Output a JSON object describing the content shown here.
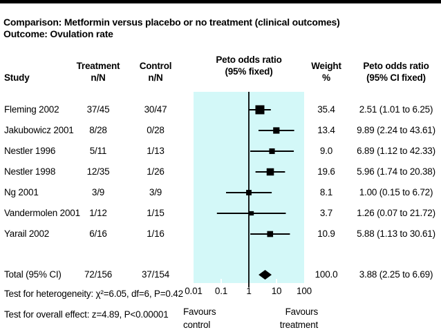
{
  "page": {
    "title_line1": "Comparison: Metformin versus placebo or no treatment (clinical outcomes)",
    "title_line2": "Outcome: Ovulation rate"
  },
  "table": {
    "headers": {
      "study": "Study",
      "treatment": "Treatment",
      "treatment_sub": "n/N",
      "control": "Control",
      "control_sub": "n/N",
      "plot": "Peto odds ratio",
      "plot_sub": "(95% fixed)",
      "weight": "Weight",
      "weight_sub": "%",
      "or_col": "Peto odds ratio",
      "or_col_sub": "(95% CI fixed)"
    }
  },
  "chart_data": {
    "type": "forest",
    "title": "Metformin versus placebo or no treatment (clinical outcomes) — Ovulation rate",
    "effect_measure": "Peto odds ratio (95% CI fixed)",
    "colors": {
      "plot_bg": "#d3f8f8",
      "marker": "#000000"
    },
    "x_axis": {
      "scale": "log",
      "range": [
        0.01,
        100
      ],
      "ticks": [
        0.01,
        0.1,
        1,
        10,
        100
      ],
      "tick_labels": [
        "0.01",
        "0.1",
        "1",
        "10",
        "100"
      ],
      "left_label": [
        "Favours",
        "control"
      ],
      "right_label": [
        "Favours",
        "treatment"
      ]
    },
    "studies": [
      {
        "study": "Fleming 2002",
        "treatment": "37/45",
        "control": "30/47",
        "weight": 35.4,
        "weight_label": "35.4",
        "or": 2.51,
        "ci_low": 1.01,
        "ci_high": 6.25,
        "or_label": "2.51 (1.01 to 6.25)"
      },
      {
        "study": "Jakubowicz 2001",
        "treatment": "8/28",
        "control": "0/28",
        "weight": 13.4,
        "weight_label": "13.4",
        "or": 9.89,
        "ci_low": 2.24,
        "ci_high": 43.61,
        "or_label": "9.89 (2.24 to 43.61)"
      },
      {
        "study": "Nestler 1996",
        "treatment": "5/11",
        "control": "1/13",
        "weight": 9.0,
        "weight_label": "9.0",
        "or": 6.89,
        "ci_low": 1.12,
        "ci_high": 42.33,
        "or_label": "6.89 (1.12 to 42.33)"
      },
      {
        "study": "Nestler 1998",
        "treatment": "12/35",
        "control": "1/26",
        "weight": 19.6,
        "weight_label": "19.6",
        "or": 5.96,
        "ci_low": 1.74,
        "ci_high": 20.38,
        "or_label": "5.96 (1.74 to 20.38)"
      },
      {
        "study": "Ng 2001",
        "treatment": "3/9",
        "control": "3/9",
        "weight": 8.1,
        "weight_label": "8.1",
        "or": 1.0,
        "ci_low": 0.15,
        "ci_high": 6.72,
        "or_label": "1.00 (0.15 to 6.72)"
      },
      {
        "study": "Vandermolen 2001",
        "treatment": "1/12",
        "control": "1/15",
        "weight": 3.7,
        "weight_label": "3.7",
        "or": 1.26,
        "ci_low": 0.07,
        "ci_high": 21.72,
        "or_label": "1.26 (0.07 to 21.72)"
      },
      {
        "study": "Yarail 2002",
        "treatment": "6/16",
        "control": "1/16",
        "weight": 10.9,
        "weight_label": "10.9",
        "or": 5.88,
        "ci_low": 1.13,
        "ci_high": 30.61,
        "or_label": "5.88 (1.13 to 30.61)"
      }
    ],
    "total": {
      "label": "Total (95% CI)",
      "treatment": "72/156",
      "control": "37/154",
      "weight_label": "100.0",
      "or": 3.88,
      "ci_low": 2.25,
      "ci_high": 6.69,
      "or_label": "3.88 (2.25 to 6.69)"
    }
  },
  "footnotes": {
    "heterogeneity": "Test for heterogeneity: χ²=6.05, df=6, P=0.42",
    "overall": "Test for overall effect: z=4.89, P<0.00001"
  }
}
